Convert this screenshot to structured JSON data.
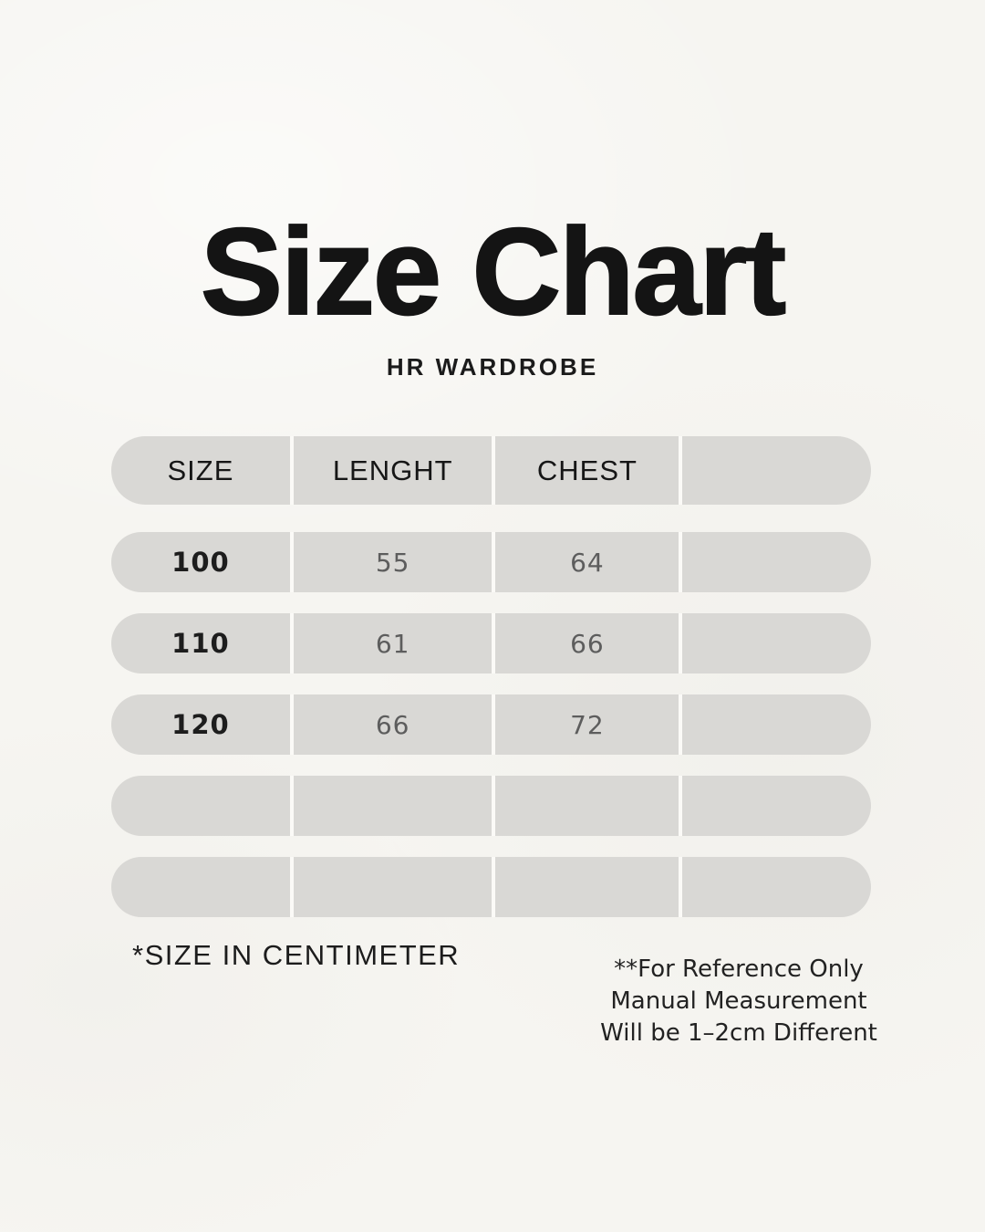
{
  "header": {
    "title": "Size Chart",
    "subtitle": "HR WARDROBE"
  },
  "table": {
    "columns": [
      "SIZE",
      "LENGHT",
      "CHEST",
      ""
    ],
    "rows": [
      [
        "100",
        "55",
        "64",
        ""
      ],
      [
        "110",
        "61",
        "66",
        ""
      ],
      [
        "120",
        "66",
        "72",
        ""
      ],
      [
        "",
        "",
        "",
        ""
      ],
      [
        "",
        "",
        "",
        ""
      ]
    ]
  },
  "footnotes": {
    "left": "*SIZE IN CENTIMETER",
    "right_lines": [
      "**For Reference Only",
      "Manual Measurement",
      "Will be 1–2cm Different"
    ]
  },
  "chart_data": {
    "type": "table",
    "title": "Size Chart",
    "subtitle": "HR WARDROBE",
    "columns": [
      "SIZE",
      "LENGHT",
      "CHEST"
    ],
    "rows": [
      [
        100,
        55,
        64
      ],
      [
        110,
        61,
        66
      ],
      [
        120,
        66,
        72
      ]
    ],
    "units": "cm",
    "empty_rows": 2,
    "notes": [
      "*SIZE IN CENTIMETER",
      "**For Reference Only Manual Measurement Will be 1–2cm Different"
    ]
  },
  "colors": {
    "background": "#f6f5f1",
    "row_fill": "#d9d8d5",
    "divider": "#fbfaf7",
    "title_text": "#141414",
    "header_text": "#161616",
    "size_text": "#1d1d1d",
    "value_text": "#5d5d5d"
  }
}
